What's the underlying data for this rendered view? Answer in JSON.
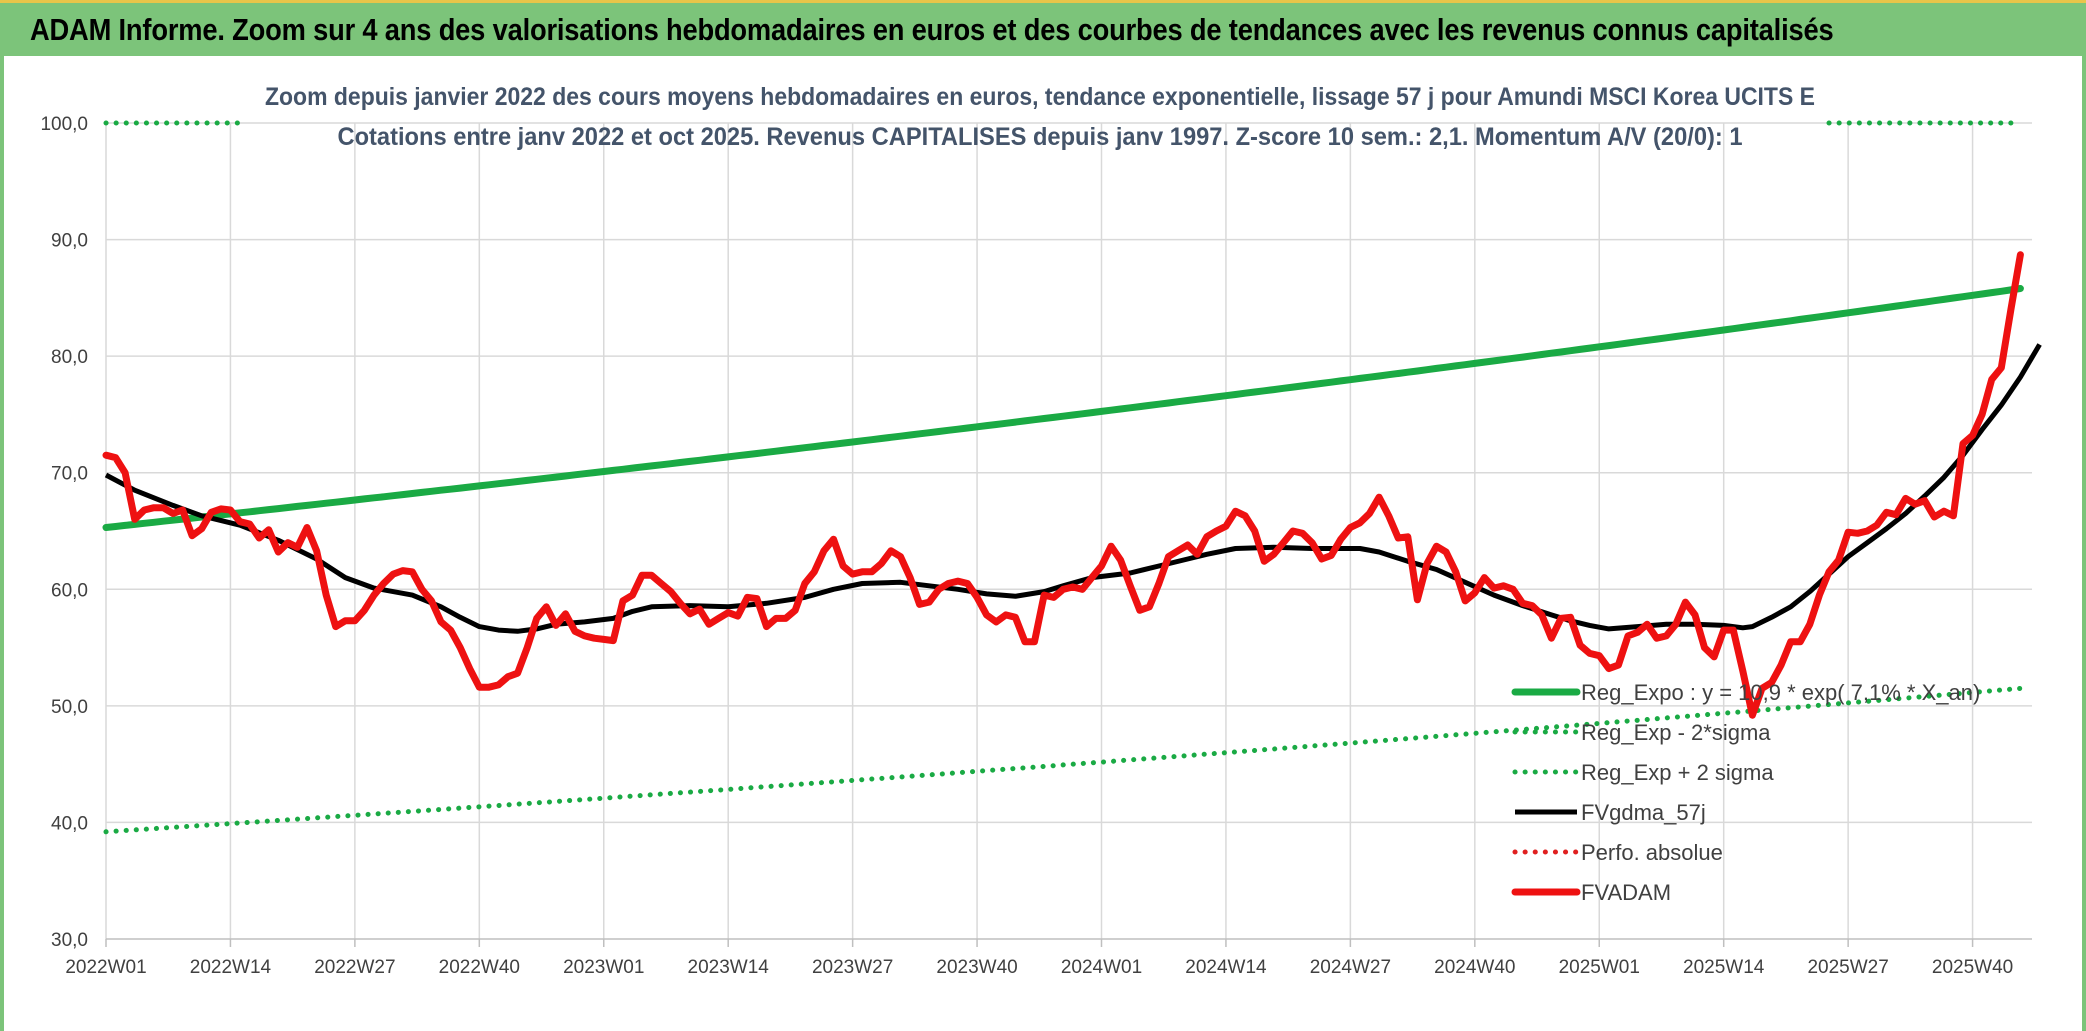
{
  "banner": {
    "title": "ADAM Informe. Zoom sur 4 ans des valorisations hebdomadaires en euros et des courbes de tendances avec les revenus connus capitalisés"
  },
  "colors": {
    "banner_bg": "#7cc47a",
    "reg_expo": "#1aaa44",
    "sigma": "#1aaa44",
    "fvgdma": "#000000",
    "perfo": "#e02020",
    "fvadam": "#ee1111",
    "grid": "#d9d9d9",
    "title_text": "#44546a"
  },
  "chart_data": {
    "type": "line",
    "title": "Zoom depuis janvier 2022 des cours moyens hebdomadaires en euros, tendance exponentielle, lissage 57 j pour Amundi MSCI Korea UCITS E",
    "subtitle": "Cotations entre janv 2022 et oct 2025. Revenus CAPITALISES depuis janv 1997. Z-score 10 sem.: 2,1. Momentum A/V (20/0): 1",
    "ylim": [
      30,
      100
    ],
    "yticks": [
      "30,0",
      "40,0",
      "50,0",
      "60,0",
      "70,0",
      "80,0",
      "90,0",
      "100,0"
    ],
    "x_count": 198,
    "xticks": [
      {
        "i": 0,
        "label": "2022W01"
      },
      {
        "i": 13,
        "label": "2022W14"
      },
      {
        "i": 26,
        "label": "2022W27"
      },
      {
        "i": 39,
        "label": "2022W40"
      },
      {
        "i": 52,
        "label": "2023W01"
      },
      {
        "i": 65,
        "label": "2023W14"
      },
      {
        "i": 78,
        "label": "2023W27"
      },
      {
        "i": 91,
        "label": "2023W40"
      },
      {
        "i": 104,
        "label": "2024W01"
      },
      {
        "i": 117,
        "label": "2024W14"
      },
      {
        "i": 130,
        "label": "2024W27"
      },
      {
        "i": 143,
        "label": "2024W40"
      },
      {
        "i": 156,
        "label": "2025W01"
      },
      {
        "i": 169,
        "label": "2025W14"
      },
      {
        "i": 182,
        "label": "2025W27"
      },
      {
        "i": 195,
        "label": "2025W40"
      }
    ],
    "series": [
      {
        "name": "Reg_Expo : y = 10,9 * exp( 7,1% * X_an)",
        "style": "solid-thick",
        "color": "#1aaa44",
        "fn": "exp",
        "start": 65.3,
        "end": 85.8
      },
      {
        "name": "Reg_Exp - 2*sigma",
        "style": "dotted",
        "color": "#1aaa44",
        "fn": "exp",
        "start": 39.2,
        "end": 51.5
      },
      {
        "name": "Reg_Exp + 2 sigma",
        "style": "dotted",
        "color": "#1aaa44",
        "fn": "exp",
        "start": 100.0,
        "end": 100.0,
        "gaps": [
          [
            14,
            180
          ]
        ]
      },
      {
        "name": "FVgdma_57j",
        "style": "solid",
        "color": "#000000",
        "points": [
          [
            0,
            69.8
          ],
          [
            3,
            68.5
          ],
          [
            7,
            67.2
          ],
          [
            10,
            66.3
          ],
          [
            14,
            65.5
          ],
          [
            18,
            64.2
          ],
          [
            22,
            62.6
          ],
          [
            25,
            61.0
          ],
          [
            28,
            60.1
          ],
          [
            32,
            59.5
          ],
          [
            35,
            58.5
          ],
          [
            37,
            57.6
          ],
          [
            39,
            56.8
          ],
          [
            41,
            56.5
          ],
          [
            43,
            56.4
          ],
          [
            45,
            56.6
          ],
          [
            47,
            57.0
          ],
          [
            50,
            57.2
          ],
          [
            53,
            57.5
          ],
          [
            55,
            58.1
          ],
          [
            57,
            58.5
          ],
          [
            61,
            58.6
          ],
          [
            65,
            58.5
          ],
          [
            69,
            58.8
          ],
          [
            73,
            59.3
          ],
          [
            76,
            60.0
          ],
          [
            79,
            60.5
          ],
          [
            83,
            60.6
          ],
          [
            86,
            60.3
          ],
          [
            89,
            60.0
          ],
          [
            92,
            59.6
          ],
          [
            95,
            59.4
          ],
          [
            98,
            59.8
          ],
          [
            100,
            60.3
          ],
          [
            103,
            61.0
          ],
          [
            107,
            61.4
          ],
          [
            110,
            62.0
          ],
          [
            113,
            62.6
          ],
          [
            115,
            63.0
          ],
          [
            118,
            63.5
          ],
          [
            122,
            63.6
          ],
          [
            126,
            63.5
          ],
          [
            131,
            63.5
          ],
          [
            133,
            63.2
          ],
          [
            136,
            62.4
          ],
          [
            139,
            61.7
          ],
          [
            142,
            60.6
          ],
          [
            145,
            59.5
          ],
          [
            148,
            58.6
          ],
          [
            151,
            57.8
          ],
          [
            153,
            57.3
          ],
          [
            155,
            56.9
          ],
          [
            157,
            56.6
          ],
          [
            160,
            56.8
          ],
          [
            163,
            57.0
          ],
          [
            166,
            57.0
          ],
          [
            169,
            56.9
          ],
          [
            171,
            56.7
          ],
          [
            172,
            56.8
          ],
          [
            174,
            57.6
          ],
          [
            176,
            58.5
          ],
          [
            178,
            59.8
          ],
          [
            180,
            61.3
          ],
          [
            182,
            62.8
          ],
          [
            184,
            64.0
          ],
          [
            186,
            65.2
          ],
          [
            188,
            66.5
          ],
          [
            190,
            68.0
          ],
          [
            192,
            69.6
          ],
          [
            194,
            71.5
          ],
          [
            196,
            73.7
          ],
          [
            198,
            75.8
          ],
          [
            200,
            78.2
          ],
          [
            202,
            81.0
          ]
        ]
      },
      {
        "name": "Perfo. absolue",
        "style": "dotted",
        "color": "#e02020",
        "points": []
      },
      {
        "name": "FVADAM",
        "style": "solid-thick",
        "color": "#ee1111",
        "points": [
          [
            0,
            71.5
          ],
          [
            1,
            71.3
          ],
          [
            2,
            70.0
          ],
          [
            3,
            66.0
          ],
          [
            4,
            66.8
          ],
          [
            5,
            67.0
          ],
          [
            6,
            67.0
          ],
          [
            7,
            66.5
          ],
          [
            8,
            66.8
          ],
          [
            9,
            64.6
          ],
          [
            10,
            65.2
          ],
          [
            11,
            66.6
          ],
          [
            12,
            66.9
          ],
          [
            13,
            66.8
          ],
          [
            14,
            65.8
          ],
          [
            15,
            65.6
          ],
          [
            16,
            64.4
          ],
          [
            17,
            65.1
          ],
          [
            18,
            63.2
          ],
          [
            19,
            64.0
          ],
          [
            20,
            63.6
          ],
          [
            21,
            65.3
          ],
          [
            22,
            63.3
          ],
          [
            23,
            59.5
          ],
          [
            24,
            56.8
          ],
          [
            25,
            57.3
          ],
          [
            26,
            57.3
          ],
          [
            27,
            58.2
          ],
          [
            28,
            59.5
          ],
          [
            29,
            60.5
          ],
          [
            30,
            61.3
          ],
          [
            31,
            61.6
          ],
          [
            32,
            61.5
          ],
          [
            33,
            60.0
          ],
          [
            34,
            59.0
          ],
          [
            35,
            57.2
          ],
          [
            36,
            56.5
          ],
          [
            37,
            55.0
          ],
          [
            38,
            53.2
          ],
          [
            39,
            51.6
          ],
          [
            40,
            51.6
          ],
          [
            41,
            51.8
          ],
          [
            42,
            52.5
          ],
          [
            43,
            52.8
          ],
          [
            44,
            55.0
          ],
          [
            45,
            57.5
          ],
          [
            46,
            58.5
          ],
          [
            47,
            56.9
          ],
          [
            48,
            57.9
          ],
          [
            49,
            56.4
          ],
          [
            50,
            56.0
          ],
          [
            51,
            55.8
          ],
          [
            52,
            55.7
          ],
          [
            53,
            55.6
          ],
          [
            54,
            59.0
          ],
          [
            55,
            59.5
          ],
          [
            56,
            61.2
          ],
          [
            57,
            61.2
          ],
          [
            58,
            60.5
          ],
          [
            59,
            59.8
          ],
          [
            60,
            58.8
          ],
          [
            61,
            57.9
          ],
          [
            62,
            58.3
          ],
          [
            63,
            57.0
          ],
          [
            64,
            57.5
          ],
          [
            65,
            58.0
          ],
          [
            66,
            57.7
          ],
          [
            67,
            59.3
          ],
          [
            68,
            59.2
          ],
          [
            69,
            56.8
          ],
          [
            70,
            57.5
          ],
          [
            71,
            57.5
          ],
          [
            72,
            58.2
          ],
          [
            73,
            60.5
          ],
          [
            74,
            61.5
          ],
          [
            75,
            63.3
          ],
          [
            76,
            64.3
          ],
          [
            77,
            62.0
          ],
          [
            78,
            61.3
          ],
          [
            79,
            61.5
          ],
          [
            80,
            61.5
          ],
          [
            81,
            62.2
          ],
          [
            82,
            63.3
          ],
          [
            83,
            62.8
          ],
          [
            84,
            61.0
          ],
          [
            85,
            58.7
          ],
          [
            86,
            58.9
          ],
          [
            87,
            60.0
          ],
          [
            88,
            60.5
          ],
          [
            89,
            60.7
          ],
          [
            90,
            60.5
          ],
          [
            91,
            59.3
          ],
          [
            92,
            57.8
          ],
          [
            93,
            57.2
          ],
          [
            94,
            57.8
          ],
          [
            95,
            57.6
          ],
          [
            96,
            55.5
          ],
          [
            97,
            55.5
          ],
          [
            98,
            59.5
          ],
          [
            99,
            59.3
          ],
          [
            100,
            60.0
          ],
          [
            101,
            60.2
          ],
          [
            102,
            60.0
          ],
          [
            103,
            61.0
          ],
          [
            104,
            62.0
          ],
          [
            105,
            63.7
          ],
          [
            106,
            62.5
          ],
          [
            107,
            60.3
          ],
          [
            108,
            58.2
          ],
          [
            109,
            58.5
          ],
          [
            110,
            60.5
          ],
          [
            111,
            62.8
          ],
          [
            112,
            63.3
          ],
          [
            113,
            63.8
          ],
          [
            114,
            63.0
          ],
          [
            115,
            64.5
          ],
          [
            116,
            65.0
          ],
          [
            117,
            65.4
          ],
          [
            118,
            66.7
          ],
          [
            119,
            66.3
          ],
          [
            120,
            65.0
          ],
          [
            121,
            62.4
          ],
          [
            122,
            63.0
          ],
          [
            123,
            64.0
          ],
          [
            124,
            65.0
          ],
          [
            125,
            64.8
          ],
          [
            126,
            64.0
          ],
          [
            127,
            62.6
          ],
          [
            128,
            62.9
          ],
          [
            129,
            64.3
          ],
          [
            130,
            65.3
          ],
          [
            131,
            65.7
          ],
          [
            132,
            66.5
          ],
          [
            133,
            67.9
          ],
          [
            134,
            66.3
          ],
          [
            135,
            64.4
          ],
          [
            136,
            64.5
          ],
          [
            137,
            59.1
          ],
          [
            138,
            62.2
          ],
          [
            139,
            63.7
          ],
          [
            140,
            63.2
          ],
          [
            141,
            61.5
          ],
          [
            142,
            59.0
          ],
          [
            143,
            59.7
          ],
          [
            144,
            61.0
          ],
          [
            145,
            60.1
          ],
          [
            146,
            60.3
          ],
          [
            147,
            60.0
          ],
          [
            148,
            58.8
          ],
          [
            149,
            58.6
          ],
          [
            150,
            57.8
          ],
          [
            151,
            55.8
          ],
          [
            152,
            57.5
          ],
          [
            153,
            57.6
          ],
          [
            154,
            55.2
          ],
          [
            155,
            54.5
          ],
          [
            156,
            54.3
          ],
          [
            157,
            53.2
          ],
          [
            158,
            53.5
          ],
          [
            159,
            56.0
          ],
          [
            160,
            56.3
          ],
          [
            161,
            57.0
          ],
          [
            162,
            55.8
          ],
          [
            163,
            56.0
          ],
          [
            164,
            57.0
          ],
          [
            165,
            58.9
          ],
          [
            166,
            57.8
          ],
          [
            167,
            55.0
          ],
          [
            168,
            54.2
          ],
          [
            169,
            56.5
          ],
          [
            170,
            56.5
          ],
          [
            171,
            53.0
          ],
          [
            172,
            49.2
          ],
          [
            173,
            51.5
          ],
          [
            174,
            52.0
          ],
          [
            175,
            53.5
          ],
          [
            176,
            55.5
          ],
          [
            177,
            55.5
          ],
          [
            178,
            57.0
          ],
          [
            179,
            59.5
          ],
          [
            180,
            61.5
          ],
          [
            181,
            62.5
          ],
          [
            182,
            64.9
          ],
          [
            183,
            64.8
          ],
          [
            184,
            65.0
          ],
          [
            185,
            65.5
          ],
          [
            186,
            66.6
          ],
          [
            187,
            66.4
          ],
          [
            188,
            67.8
          ],
          [
            189,
            67.3
          ],
          [
            190,
            67.6
          ],
          [
            191,
            66.2
          ],
          [
            192,
            66.7
          ],
          [
            193,
            66.3
          ],
          [
            194,
            72.5
          ],
          [
            195,
            73.2
          ],
          [
            196,
            75.0
          ],
          [
            197,
            78.0
          ],
          [
            198,
            79.0
          ],
          [
            199,
            84.0
          ],
          [
            200,
            88.7
          ]
        ]
      }
    ],
    "legend": "bottom-right",
    "grid": true
  }
}
